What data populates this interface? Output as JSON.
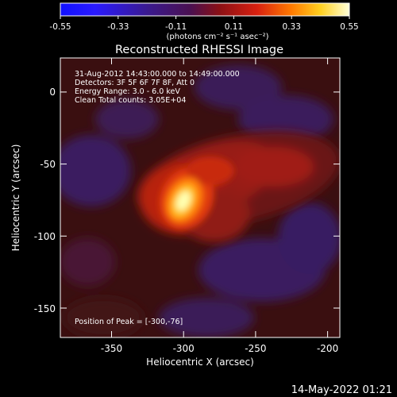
{
  "colorbar": {
    "ticks": [
      "-0.55",
      "-0.33",
      "-0.11",
      "0.11",
      "0.33",
      "0.55"
    ],
    "unit_label": "(photons cm⁻² s⁻¹ asec⁻²)",
    "range": [
      -0.55,
      0.55
    ]
  },
  "plot": {
    "title": "Reconstructed RHESSI Image",
    "xlabel": "Heliocentric X (arcsec)",
    "ylabel": "Heliocentric Y (arcsec)",
    "x_ticks": [
      "-350",
      "-300",
      "-250",
      "-200"
    ],
    "y_ticks": [
      "0",
      "-50",
      "-100",
      "-150"
    ],
    "xlim": [
      -388,
      -194
    ],
    "ylim": [
      -172,
      22
    ]
  },
  "annotation": {
    "time": "31-Aug-2012 14:43:00.000 to 14:49:00.000",
    "detectors": "Detectors: 3F 5F 6F 7F 8F, Att 0",
    "energy": "Energy Range: 3.0 - 6.0 keV",
    "clean": "Clean    Total counts: 3.05E+04",
    "peak": "Position of Peak = [-300,-76]"
  },
  "footer": {
    "timestamp": "14-May-2022 01:21"
  },
  "colors": {
    "frame": "#ffffff",
    "background": "#000000"
  }
}
